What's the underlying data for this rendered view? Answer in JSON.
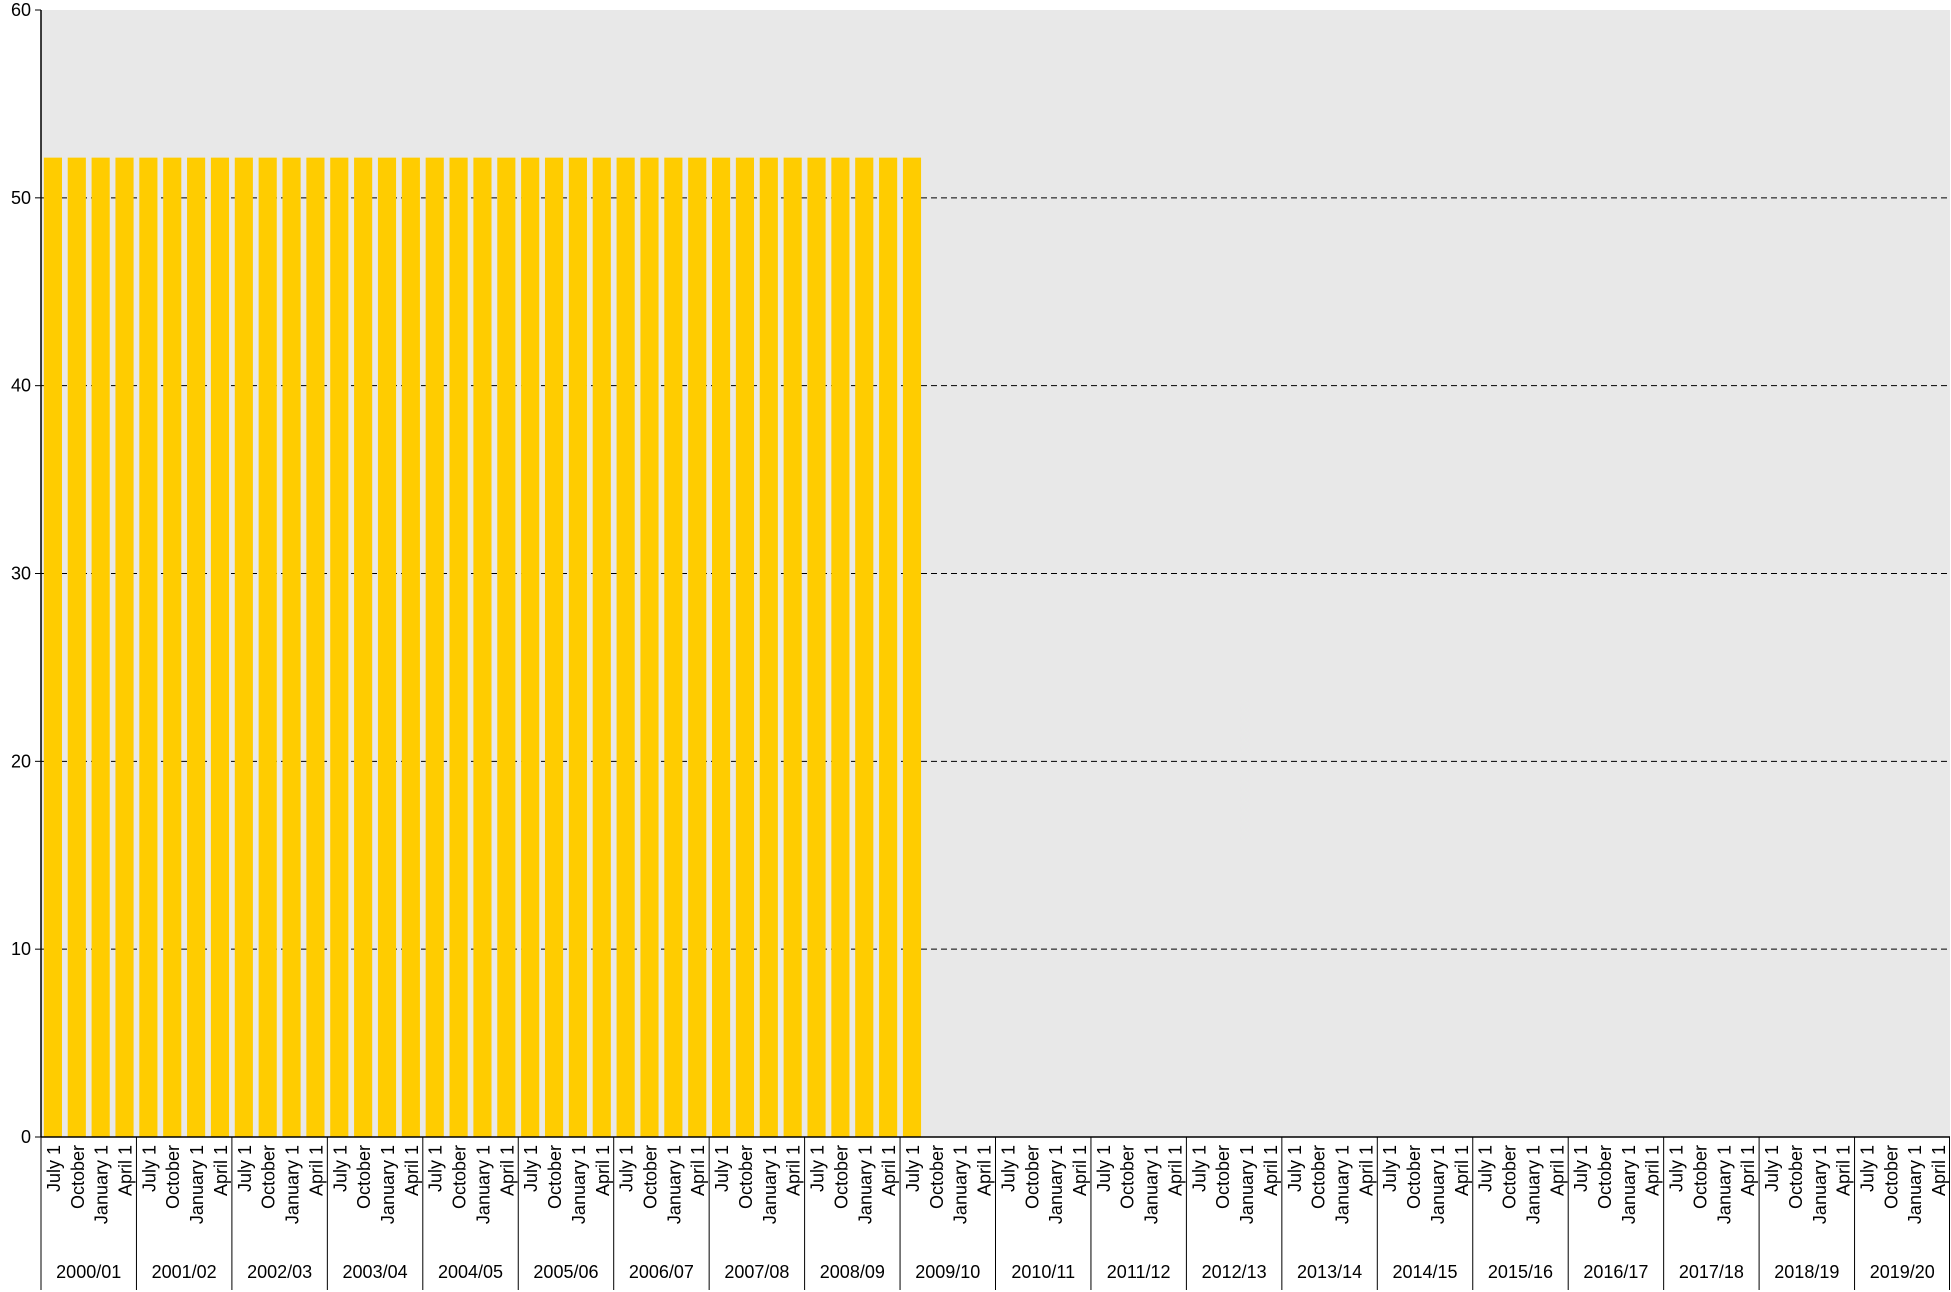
{
  "chart_data": {
    "type": "bar",
    "title": "",
    "xlabel": "",
    "ylabel": "",
    "ylim": [
      0,
      60
    ],
    "yticks": [
      0,
      10,
      20,
      30,
      40,
      50,
      60
    ],
    "grid": "horizontal dashed",
    "legend": "none",
    "quarter_labels": [
      "July 1",
      "October",
      "January 1",
      "April 1"
    ],
    "years": [
      "2000/01",
      "2001/02",
      "2002/03",
      "2003/04",
      "2004/05",
      "2005/06",
      "2006/07",
      "2007/08",
      "2008/09",
      "2009/10",
      "2010/11",
      "2011/12",
      "2012/13",
      "2013/14",
      "2014/15",
      "2015/16",
      "2016/17",
      "2017/18",
      "2018/19",
      "2019/20"
    ],
    "series": [
      {
        "values": [
          52.14,
          52.14,
          52.14,
          52.14,
          52.14,
          52.14,
          52.14,
          52.14,
          52.14,
          52.14,
          52.14,
          52.14,
          52.14,
          52.14,
          52.14,
          52.14,
          52.14,
          52.14,
          52.14,
          52.14,
          52.14,
          52.14,
          52.14,
          52.14,
          52.14,
          52.14,
          52.14,
          52.14,
          52.14,
          52.14,
          52.14,
          52.14,
          52.14,
          52.14,
          52.14,
          52.14,
          52.14,
          null,
          null,
          null,
          null,
          null,
          null,
          null,
          null,
          null,
          null,
          null,
          null,
          null,
          null,
          null,
          null,
          null,
          null,
          null,
          null,
          null,
          null,
          null,
          null,
          null,
          null,
          null,
          null,
          null,
          null,
          null,
          null,
          null,
          null,
          null,
          null,
          null,
          null,
          null,
          null,
          null,
          null,
          null
        ]
      }
    ],
    "colors": {
      "bar": "#ffcc00",
      "plot_background": "#e8e8e8",
      "grid": "#000000",
      "axis": "#000000"
    }
  }
}
